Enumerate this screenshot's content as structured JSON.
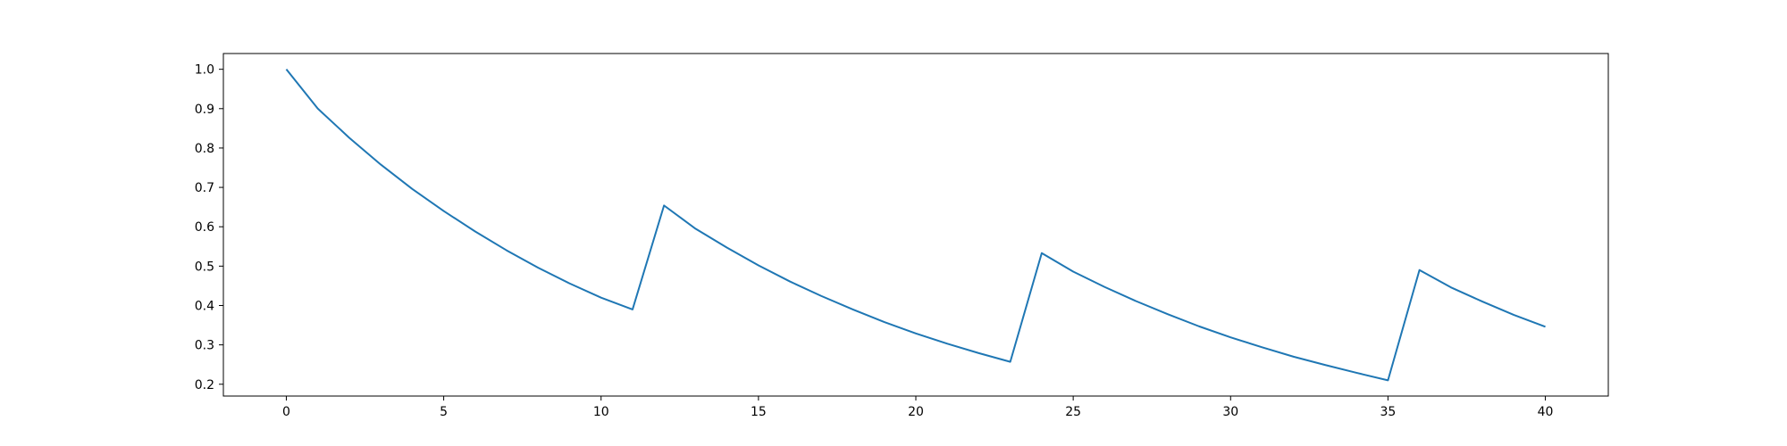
{
  "chart_data": {
    "type": "line",
    "title": "",
    "xlabel": "",
    "ylabel": "",
    "xlim": [
      -2.0,
      42.0
    ],
    "ylim": [
      0.17,
      1.04
    ],
    "xticks": [
      0,
      5,
      10,
      15,
      20,
      25,
      30,
      35,
      40
    ],
    "xtick_labels": [
      "0",
      "5",
      "10",
      "15",
      "20",
      "25",
      "30",
      "35",
      "40"
    ],
    "yticks": [
      0.2,
      0.3,
      0.4,
      0.5,
      0.6,
      0.7,
      0.8,
      0.9,
      1.0
    ],
    "ytick_labels": [
      "0.2",
      "0.3",
      "0.4",
      "0.5",
      "0.6",
      "0.7",
      "0.8",
      "0.9",
      "1.0"
    ],
    "grid": false,
    "line_color": "#1f77b4",
    "series": [
      {
        "x": [
          0,
          1,
          2,
          3,
          4,
          5,
          6,
          7,
          8,
          9,
          10,
          11,
          12,
          13,
          14,
          15,
          16,
          17,
          18,
          19,
          20,
          21,
          22,
          23,
          24,
          25,
          26,
          27,
          28,
          29,
          30,
          31,
          32,
          33,
          34,
          35,
          36,
          37,
          38,
          39,
          40
        ],
        "y": [
          1.0,
          0.9,
          0.826,
          0.758,
          0.696,
          0.64,
          0.588,
          0.54,
          0.496,
          0.456,
          0.42,
          0.39,
          0.654,
          0.595,
          0.547,
          0.502,
          0.461,
          0.424,
          0.39,
          0.358,
          0.329,
          0.303,
          0.279,
          0.257,
          0.533,
          0.486,
          0.447,
          0.411,
          0.378,
          0.347,
          0.319,
          0.294,
          0.27,
          0.249,
          0.229,
          0.21,
          0.49,
          0.446,
          0.41,
          0.376,
          0.346
        ]
      }
    ]
  }
}
